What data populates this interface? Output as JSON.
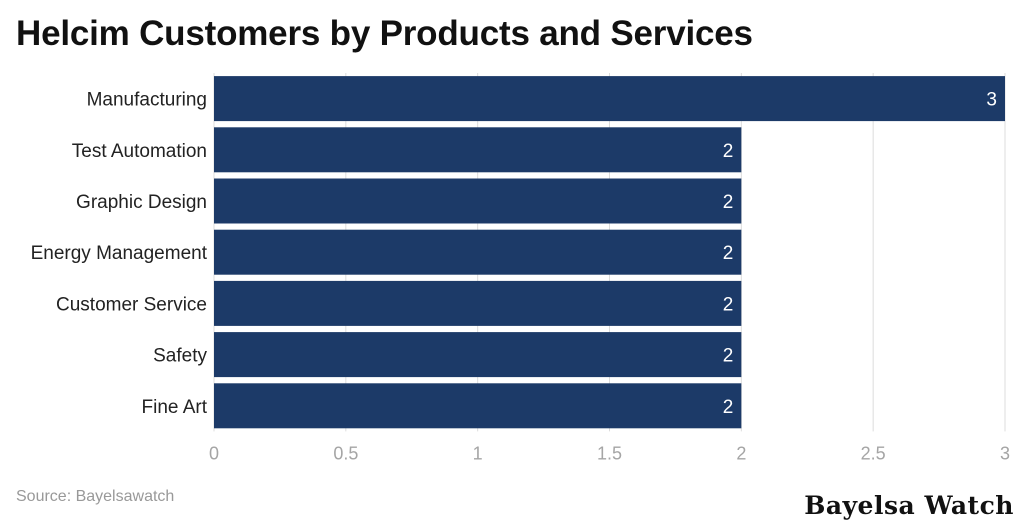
{
  "title": "Helcim Customers by Products and Services",
  "source": "Source: Bayelsawatch",
  "brand": "Bayelsa Watch",
  "colors": {
    "bar": "#1c3a68",
    "grid": "#dcdcdc",
    "tick_text": "#a5a5a5",
    "value_text": "#ffffff"
  },
  "chart_data": {
    "type": "bar",
    "orientation": "horizontal",
    "categories": [
      "Manufacturing",
      "Test Automation",
      "Graphic Design",
      "Energy Management",
      "Customer Service",
      "Safety",
      "Fine Art"
    ],
    "values": [
      3,
      2,
      2,
      2,
      2,
      2,
      2
    ],
    "data_labels": [
      "3",
      "2",
      "2",
      "2",
      "2",
      "2",
      "2"
    ],
    "x_ticks": [
      "0",
      "0.5",
      "1",
      "1.5",
      "2",
      "2.5",
      "3"
    ],
    "x_tick_values": [
      0,
      0.5,
      1,
      1.5,
      2,
      2.5,
      3
    ],
    "xlim": [
      0,
      3
    ],
    "grid": true,
    "legend": false,
    "title": "Helcim Customers by Products and Services",
    "xlabel": "",
    "ylabel": ""
  }
}
